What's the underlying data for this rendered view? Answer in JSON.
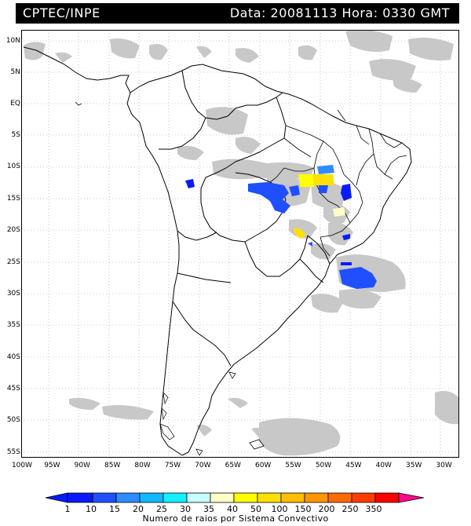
{
  "header": {
    "source": "CPTEC/INPE",
    "datetime": "Data: 20081113 Hora: 0330 GMT"
  },
  "axes": {
    "latitude_labels": [
      "10N",
      "5N",
      "EQ",
      "5S",
      "10S",
      "15S",
      "20S",
      "25S",
      "30S",
      "35S",
      "40S",
      "45S",
      "50S",
      "55S"
    ],
    "longitude_labels": [
      "100W",
      "95W",
      "90W",
      "85W",
      "80W",
      "75W",
      "70W",
      "65W",
      "60W",
      "55W",
      "50W",
      "45W",
      "40W",
      "35W",
      "30W"
    ]
  },
  "legend": {
    "title": "Numero de raios por Sistema Convectivo",
    "tick_labels": [
      "1",
      "10",
      "15",
      "20",
      "25",
      "30",
      "35",
      "40",
      "50",
      "100",
      "150",
      "200",
      "250",
      "350"
    ],
    "colors": [
      "#0a1aff",
      "#1f4fff",
      "#2d8cff",
      "#12b8ff",
      "#13f0ff",
      "#c5ffff",
      "#ffffc8",
      "#ffff00",
      "#ffe000",
      "#ffbe00",
      "#ff9600",
      "#ff6a00",
      "#ff3c00",
      "#ff0000",
      "#ff0a8c"
    ]
  },
  "map": {
    "extent": {
      "lon": [
        -100,
        -28
      ],
      "lat": [
        -56,
        12
      ]
    },
    "features": {
      "cloud_color": "#c8c8c8",
      "coast_color": "#000000",
      "grid_style": "dotted"
    }
  }
}
